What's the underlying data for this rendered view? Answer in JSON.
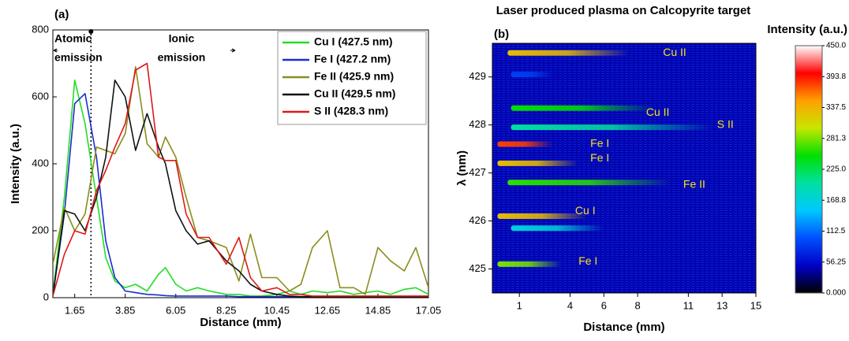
{
  "chart_data": [
    {
      "type": "line",
      "title": "(a)",
      "xlabel": "Distance (mm)",
      "ylabel": "Intensity (a.u.)",
      "x": [
        0.7,
        1.2,
        1.65,
        2.1,
        2.6,
        3.0,
        3.4,
        3.85,
        4.3,
        4.8,
        5.3,
        5.6,
        6.05,
        6.5,
        7.0,
        7.5,
        8.25,
        8.8,
        9.3,
        9.8,
        10.45,
        11.0,
        11.5,
        12.0,
        12.65,
        13.2,
        13.8,
        14.3,
        14.85,
        15.4,
        16.0,
        16.5,
        17.05
      ],
      "xlim": [
        0.7,
        17.05
      ],
      "xticks": [
        1.65,
        3.85,
        6.05,
        8.25,
        10.45,
        12.65,
        14.85,
        17.05
      ],
      "ylim": [
        0,
        800
      ],
      "yticks": [
        0,
        200,
        400,
        600,
        800
      ],
      "legend": "upper right",
      "annotations": [
        {
          "lines": [
            "Atomic",
            "emission"
          ]
        },
        {
          "lines": [
            "Ionic",
            "emission"
          ]
        }
      ],
      "divider": 2.36,
      "series": [
        {
          "name": "Cu I (427.5 nm)",
          "color": "#22dd22",
          "values": [
            10,
            300,
            650,
            520,
            300,
            120,
            50,
            30,
            40,
            20,
            70,
            90,
            40,
            20,
            30,
            20,
            10,
            10,
            5,
            5,
            10,
            20,
            10,
            20,
            15,
            20,
            10,
            15,
            20,
            10,
            25,
            30,
            10
          ]
        },
        {
          "name": "Fe I (427.2 nm)",
          "color": "#1a2ed0",
          "values": [
            5,
            250,
            580,
            610,
            420,
            170,
            60,
            20,
            15,
            10,
            8,
            6,
            5,
            5,
            5,
            5,
            5,
            3,
            3,
            3,
            3,
            3,
            3,
            3,
            3,
            3,
            3,
            3,
            3,
            3,
            3,
            3,
            3
          ]
        },
        {
          "name": "Fe II (425.9 nm)",
          "color": "#8c8c1e",
          "values": [
            100,
            270,
            200,
            250,
            450,
            440,
            430,
            490,
            690,
            460,
            420,
            480,
            420,
            300,
            180,
            170,
            150,
            50,
            190,
            60,
            60,
            20,
            40,
            150,
            200,
            30,
            30,
            10,
            150,
            110,
            80,
            150,
            30
          ]
        },
        {
          "name": "Cu II (429.5 nm)",
          "color": "#111111",
          "values": [
            5,
            260,
            250,
            200,
            300,
            420,
            650,
            600,
            440,
            550,
            450,
            400,
            260,
            200,
            160,
            170,
            110,
            80,
            40,
            20,
            10,
            5,
            3,
            3,
            3,
            3,
            3,
            3,
            3,
            3,
            3,
            3,
            3
          ]
        },
        {
          "name": "S II (428.3 nm)",
          "color": "#e01818",
          "values": [
            5,
            130,
            200,
            190,
            320,
            380,
            450,
            520,
            680,
            700,
            420,
            410,
            410,
            250,
            180,
            180,
            100,
            180,
            60,
            20,
            30,
            10,
            10,
            5,
            5,
            5,
            5,
            5,
            5,
            5,
            5,
            5,
            5
          ]
        }
      ]
    },
    {
      "type": "heatmap",
      "title": "Laser produced plasma on Calcopyrite target",
      "panel": "(b)",
      "xlabel": "Distance (mm)",
      "ylabel": "λ (nm)",
      "xlim": [
        -0.6,
        15
      ],
      "xticks": [
        1,
        4,
        6,
        8,
        11,
        13,
        15
      ],
      "ylim": [
        424.5,
        429.7
      ],
      "yticks": [
        425,
        426,
        427,
        428,
        429
      ],
      "streaks": [
        {
          "wavelength": 429.5,
          "start": 0.3,
          "end": 7.5,
          "intensity": 330
        },
        {
          "wavelength": 429.05,
          "start": 0.5,
          "end": 3,
          "intensity": 90
        },
        {
          "wavelength": 428.35,
          "start": 0.5,
          "end": 9,
          "intensity": 250
        },
        {
          "wavelength": 427.95,
          "start": 0.5,
          "end": 12.5,
          "intensity": 200
        },
        {
          "wavelength": 427.6,
          "start": -0.3,
          "end": 3,
          "intensity": 380
        },
        {
          "wavelength": 427.2,
          "start": -0.3,
          "end": 4.5,
          "intensity": 330
        },
        {
          "wavelength": 426.8,
          "start": 0.3,
          "end": 10,
          "intensity": 260
        },
        {
          "wavelength": 426.1,
          "start": -0.3,
          "end": 5,
          "intensity": 330
        },
        {
          "wavelength": 425.85,
          "start": 0.5,
          "end": 6,
          "intensity": 170
        },
        {
          "wavelength": 425.1,
          "start": -0.3,
          "end": 3.5,
          "intensity": 280
        }
      ],
      "labels": [
        {
          "text": "Cu II",
          "x": 9.5,
          "y": 429.5
        },
        {
          "text": "Cu II",
          "x": 8.5,
          "y": 428.25
        },
        {
          "text": "S II",
          "x": 12.7,
          "y": 428.0
        },
        {
          "text": "Fe I",
          "x": 5.2,
          "y": 427.6
        },
        {
          "text": "Fe I",
          "x": 5.2,
          "y": 427.3
        },
        {
          "text": "Fe II",
          "x": 10.7,
          "y": 426.75
        },
        {
          "text": "Cu I",
          "x": 4.3,
          "y": 426.2
        },
        {
          "text": "Fe I",
          "x": 4.5,
          "y": 425.15
        }
      ],
      "colorbar": {
        "title": "Intensity (a.u.)",
        "lim": [
          0,
          450
        ],
        "ticks": [
          {
            "value": 450,
            "label": "450.0"
          },
          {
            "value": 393.75,
            "label": "393.8"
          },
          {
            "value": 337.5,
            "label": "337.5"
          },
          {
            "value": 281.25,
            "label": "281.3"
          },
          {
            "value": 225,
            "label": "225.0"
          },
          {
            "value": 168.75,
            "label": "168.8"
          },
          {
            "value": 112.5,
            "label": "112.5"
          },
          56.25,
          {
            "value": 0,
            "label": "0.000"
          }
        ],
        "colors": [
          "#000000",
          "#0000c8",
          "#0050ff",
          "#00c8ff",
          "#00e0a0",
          "#00e000",
          "#c8e600",
          "#ffa000",
          "#ff0000",
          "#ffffff"
        ]
      }
    }
  ]
}
